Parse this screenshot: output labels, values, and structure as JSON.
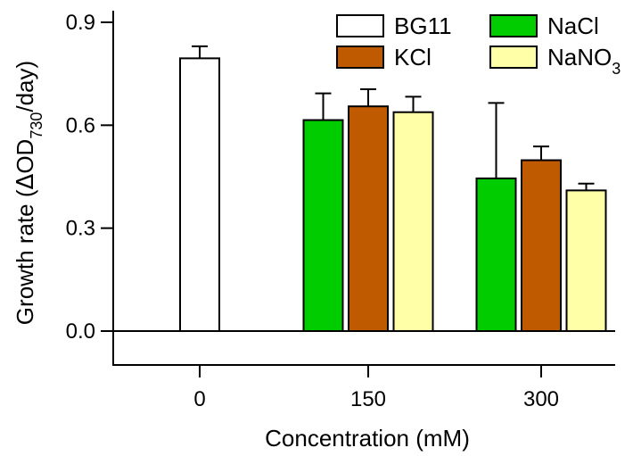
{
  "chart_data": {
    "type": "bar",
    "title": "",
    "xlabel": "Concentration (mM)",
    "ylabel": {
      "prefix": "Growth rate (",
      "delta": "Δ",
      "od": "OD",
      "sub": "730",
      "suffix": "/day)"
    },
    "ylim": [
      0,
      0.9
    ],
    "yticks": [
      {
        "value": 0.0,
        "label": "0.0"
      },
      {
        "value": 0.3,
        "label": "0.3"
      },
      {
        "value": 0.6,
        "label": "0.6"
      },
      {
        "value": 0.9,
        "label": "0.9"
      }
    ],
    "categories": [
      "0",
      "150",
      "300"
    ],
    "series": [
      {
        "name": "BG11",
        "color": "#ffffff",
        "values": [
          0.795,
          null,
          null
        ],
        "errors": [
          0.035,
          null,
          null
        ]
      },
      {
        "name": "NaCl",
        "color": "#00cc00",
        "values": [
          null,
          0.615,
          0.445
        ],
        "errors": [
          null,
          0.078,
          0.22
        ]
      },
      {
        "name": "KCl",
        "color": "#c05a00",
        "values": [
          null,
          0.655,
          0.498
        ],
        "errors": [
          null,
          0.05,
          0.04
        ]
      },
      {
        "name": "NaNO3",
        "label_main": "NaNO",
        "label_sub": "3",
        "color": "#ffffa8",
        "values": [
          null,
          0.638,
          0.41
        ],
        "errors": [
          null,
          0.045,
          0.02
        ]
      }
    ],
    "legend_position": "top-right",
    "grid": false
  }
}
